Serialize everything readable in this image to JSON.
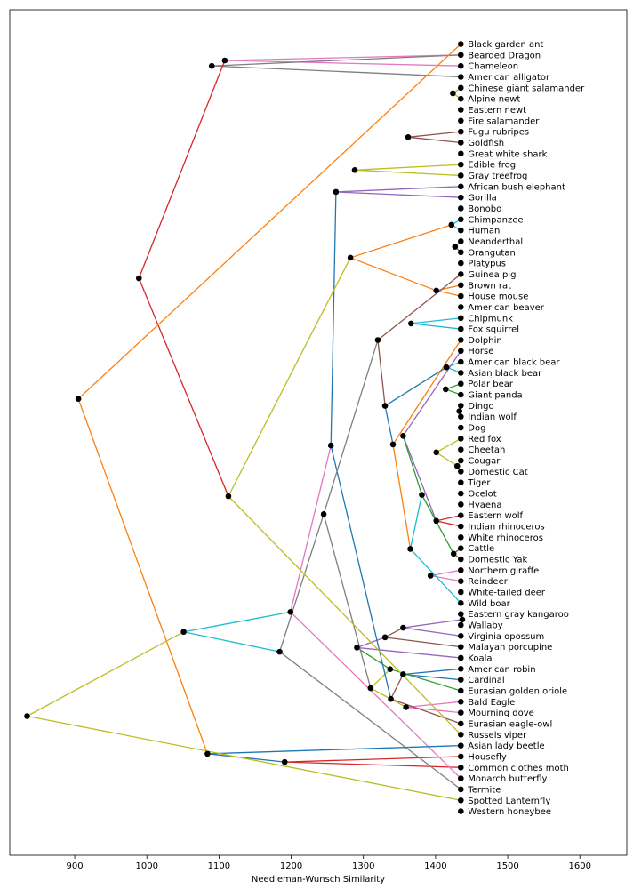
{
  "chart_data": {
    "type": "dendrogram",
    "xlabel": "Needleman-Wunsch Similarity",
    "xlim": [
      810,
      1665
    ],
    "xticks": [
      900,
      1000,
      1100,
      1200,
      1300,
      1400,
      1500,
      1600
    ],
    "leaf_x": 1435,
    "leaves": [
      "Black garden ant",
      "Bearded Dragon",
      "Chameleon",
      "American alligator",
      "Chinese giant salamander",
      "Alpine newt",
      "Eastern newt",
      "Fire salamander",
      "Fugu rubripes",
      "Goldfish",
      "Great white shark",
      "Edible frog",
      "Gray treefrog",
      "African bush elephant",
      "Gorilla",
      "Bonobo",
      "Chimpanzee",
      "Human",
      "Neanderthal",
      "Orangutan",
      "Platypus",
      "Guinea pig",
      "Brown rat",
      "House mouse",
      "American beaver",
      "Chipmunk",
      "Fox squirrel",
      "Dolphin",
      "Horse",
      "American black bear",
      "Asian black bear",
      "Polar bear",
      "Giant panda",
      "Dingo",
      "Indian wolf",
      "Dog",
      "Red fox",
      "Cheetah",
      "Cougar",
      "Domestic Cat",
      "Tiger",
      "Ocelot",
      "Hyaena",
      "Eastern wolf",
      "Indian rhinoceros",
      "White rhinoceros",
      "Cattle",
      "Domestic Yak",
      "Northern giraffe",
      "Reindeer",
      "White-tailed deer",
      "Wild boar",
      "Eastern gray kangaroo",
      "Wallaby",
      "Virginia opossum",
      "Malayan porcupine",
      "Koala",
      "American robin",
      "Cardinal",
      "Eurasian golden oriole",
      "Bald Eagle",
      "Mourning dove",
      "Eurasian eagle-owl",
      "Russels viper",
      "Asian lady beetle",
      "Housefly",
      "Common clothes moth",
      "Monarch butterfly",
      "Termite",
      "Spotted Lanternfly",
      "Western honeybee"
    ],
    "merges": [
      [
        "L1",
        "L2",
        1108,
        "#e377c2"
      ],
      [
        "L1,2",
        "L3",
        1090,
        "#7f7f7f"
      ],
      [
        "L4",
        "L5",
        1424,
        "#bcbd22"
      ],
      [
        "N4",
        "L6",
        1362,
        "#2ca02c"
      ],
      [
        "L8",
        "L9",
        1362,
        "#8c564b"
      ],
      [
        "N5",
        "L7",
        1341,
        "#d62728"
      ],
      [
        "N6",
        "L10",
        1338,
        "#e377c2"
      ],
      [
        "N5",
        "L5",
        1329,
        "#17becf"
      ],
      [
        "L11",
        "L12",
        1288,
        "#bcbd22"
      ],
      [
        "N8",
        "N9",
        1280,
        "#8c564b"
      ],
      [
        "L13",
        "L14",
        1262,
        "#9467bd"
      ],
      [
        "L16",
        "L17",
        1422,
        "#17becf"
      ],
      [
        "L15",
        "N12",
        1406,
        "#8c564b"
      ],
      [
        "L18",
        "L19",
        1427,
        "#2ca02c"
      ],
      [
        "N13",
        "N14",
        1392,
        "#9467bd"
      ],
      [
        "N15",
        "L20",
        1357,
        "#d62728"
      ],
      [
        "L22",
        "L23",
        1401,
        "#ff7f0e"
      ],
      [
        "N17",
        "L24",
        1328,
        "#2ca02c"
      ],
      [
        "L25",
        "L26",
        1366,
        "#17becf"
      ],
      [
        "N18",
        "N19",
        1339,
        "#e377c2"
      ],
      [
        "L29",
        "L30",
        1415,
        "#17becf"
      ],
      [
        "L31",
        "L32",
        1414,
        "#2ca02c"
      ],
      [
        "N21",
        "N22",
        1397,
        "#ff7f0e"
      ],
      [
        "L33",
        "L34",
        1433,
        "#2ca02c"
      ],
      [
        "N24",
        "L35",
        1424,
        "#17becf"
      ],
      [
        "L38",
        "L39",
        1430,
        "#bcbd22"
      ],
      [
        "N26",
        "L40",
        1427,
        "#17becf"
      ],
      [
        "N25",
        "L36",
        1401,
        "#bcbd22"
      ],
      [
        "N28",
        "N27",
        1419,
        "#8c564b"
      ],
      [
        "N29",
        "L41",
        1376,
        "#8c564b"
      ],
      [
        "N30",
        "N23",
        1377,
        "#9467bd"
      ],
      [
        "L43",
        "L44",
        1401,
        "#d62728"
      ],
      [
        "N31",
        "L28",
        1355,
        "#9467bd"
      ],
      [
        "L46",
        "L47",
        1425,
        "#8c564b"
      ],
      [
        "L48",
        "L49",
        1393,
        "#e377c2"
      ],
      [
        "N32",
        "N33",
        1381,
        "#2ca02c"
      ],
      [
        "N35",
        "L51",
        1365,
        "#17becf"
      ],
      [
        "L52",
        "L53",
        1437,
        "#ff7f0e"
      ],
      [
        "N36",
        "L27",
        1341,
        "#ff7f0e"
      ],
      [
        "N37",
        "L54",
        1355,
        "#9467bd"
      ],
      [
        "N20",
        "N38",
        1330,
        "#1f77b4"
      ],
      [
        "N39",
        "L55",
        1330,
        "#8c564b"
      ],
      [
        "N40",
        "L21",
        1320,
        "#8c564b"
      ],
      [
        "N41",
        "L56",
        1291,
        "#9467bd"
      ],
      [
        "L57",
        "L58",
        1355,
        "#1f77b4"
      ],
      [
        "L60",
        "L61",
        1359,
        "#e377c2"
      ],
      [
        "N43",
        "L59",
        1337,
        "#2ca02c"
      ],
      [
        "N44",
        "L62",
        1338,
        "#8c564b"
      ],
      [
        "N45",
        "N46",
        1310,
        "#bcbd22"
      ],
      [
        "N11",
        "N16",
        1282,
        "#ff7f0e"
      ],
      [
        "N10",
        "N47",
        1255,
        "#1f77b4"
      ],
      [
        "N48",
        "N42",
        1245,
        "#7f7f7f"
      ],
      [
        "L65",
        "L66",
        1191,
        "#d62728"
      ],
      [
        "N50",
        "L67",
        1199,
        "#e377c2"
      ],
      [
        "N51",
        "L68",
        1184,
        "#7f7f7f"
      ],
      [
        "N49",
        "L63",
        1113,
        "#bcbd22"
      ],
      [
        "L64",
        "N52",
        1084,
        "#1f77b4"
      ],
      [
        "N53",
        "N54",
        1051,
        "#17becf"
      ],
      [
        "N0",
        "N55",
        989,
        "#d62728"
      ],
      [
        "L0",
        "N56",
        905,
        "#ff7f0e"
      ],
      [
        "N57",
        "L69",
        834,
        "#bcbd22"
      ]
    ]
  }
}
